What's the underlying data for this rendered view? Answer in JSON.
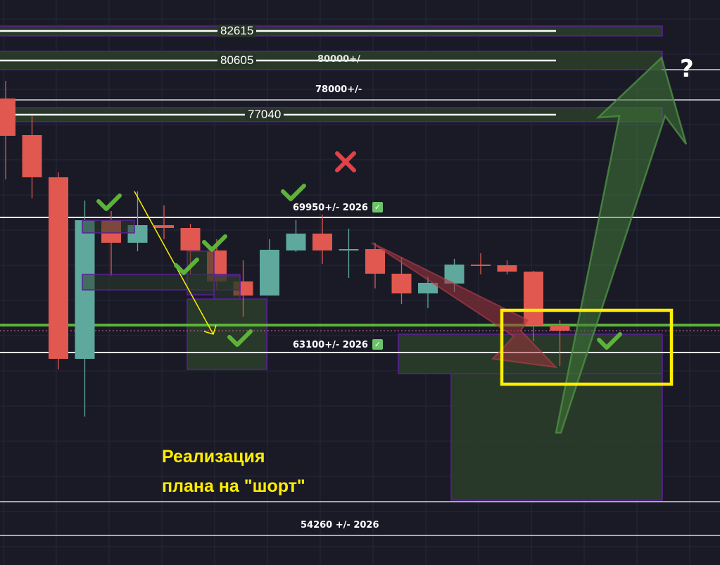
{
  "chart_data": {
    "type": "candlestick",
    "colors": {
      "up": "#5fa89e",
      "down": "#e0584f",
      "zone_fill": "#2a3d2a",
      "zone_border": "#5a1f9a",
      "highlight": "#ffee00",
      "support": "#5db33a",
      "background": "#1a1a27"
    },
    "candles": [
      {
        "o": 78516,
        "h": 79583,
        "l": 73606,
        "c": 76253
      },
      {
        "o": 76296,
        "h": 77448,
        "l": 72453,
        "c": 73734
      },
      {
        "o": 73734,
        "h": 74033,
        "l": 62077,
        "c": 62717
      },
      {
        "o": 62717,
        "h": 72325,
        "l": 59216,
        "c": 71129
      },
      {
        "o": 71129,
        "h": 71684,
        "l": 67756,
        "c": 69763
      },
      {
        "o": 69763,
        "h": 72880,
        "l": 69250,
        "c": 70830
      },
      {
        "o": 70830,
        "h": 72026,
        "l": 69976,
        "c": 70659
      },
      {
        "o": 70659,
        "h": 70915,
        "l": 67841,
        "c": 69293
      },
      {
        "o": 69293,
        "h": 69976,
        "l": 66902,
        "c": 67414
      },
      {
        "o": 67414,
        "h": 68695,
        "l": 65279,
        "c": 66560
      },
      {
        "o": 66560,
        "h": 69976,
        "l": 66560,
        "c": 69336
      },
      {
        "o": 69293,
        "h": 71129,
        "l": 69207,
        "c": 70318
      },
      {
        "o": 70318,
        "h": 71470,
        "l": 68481,
        "c": 69293
      },
      {
        "o": 69293,
        "h": 70616,
        "l": 67627,
        "c": 69378
      },
      {
        "o": 69378,
        "h": 69763,
        "l": 66987,
        "c": 67884
      },
      {
        "o": 67884,
        "h": 68908,
        "l": 66048,
        "c": 66688
      },
      {
        "o": 66688,
        "h": 67713,
        "l": 65791,
        "c": 67329
      },
      {
        "o": 67286,
        "h": 68780,
        "l": 66773,
        "c": 68439
      },
      {
        "o": 68439,
        "h": 69122,
        "l": 67841,
        "c": 68353
      },
      {
        "o": 68396,
        "h": 68695,
        "l": 67841,
        "c": 68012
      },
      {
        "o": 68012,
        "h": 68054,
        "l": 63784,
        "c": 64767
      },
      {
        "o": 64767,
        "h": 65065,
        "l": 62290,
        "c": 64425
      }
    ],
    "level_labels": [
      "82615",
      "80605",
      "77040"
    ],
    "annotations": {
      "l80000": "80000+/",
      "l78000": "78000+/-",
      "l69950": "69950+/- 2026",
      "l63100": "63100+/- 2026",
      "l54260": "54260 +/- 2026",
      "question": "?",
      "caption_line1": "Реализация",
      "caption_line2": "плана на \"шорт\""
    },
    "grid": true
  }
}
